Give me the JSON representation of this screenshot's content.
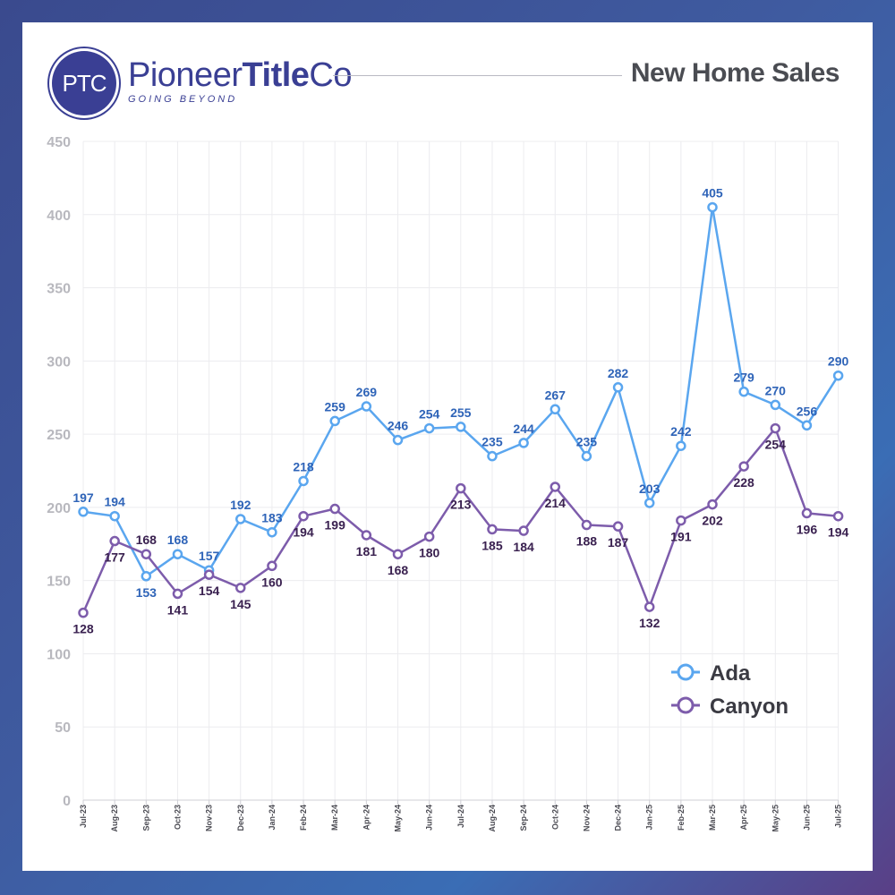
{
  "brand": {
    "badge": "PTC",
    "name_part1": "Pioneer",
    "name_part2": "Title",
    "name_part3": "Co",
    "tagline": "GOING BEYOND"
  },
  "colors": {
    "ada": "#5aa6ef",
    "canyon": "#7d5cab",
    "ada_label": "#2f64b8",
    "canyon_label": "#3a2150",
    "brand": "#3a3f94"
  },
  "chart_data": {
    "type": "line",
    "title": "New Home Sales",
    "xlabel": "",
    "ylabel": "",
    "ylim": [
      0,
      450
    ],
    "yticks": [
      0,
      50,
      100,
      150,
      200,
      250,
      300,
      350,
      400,
      450
    ],
    "grid": true,
    "legend_position": "bottom-right",
    "categories": [
      "Jul-23",
      "Aug-23",
      "Sep-23",
      "Oct-23",
      "Nov-23",
      "Dec-23",
      "Jan-24",
      "Feb-24",
      "Mar-24",
      "Apr-24",
      "May-24",
      "Jun-24",
      "Jul-24",
      "Aug-24",
      "Sep-24",
      "Oct-24",
      "Nov-24",
      "Dec-24",
      "Jan-25",
      "Feb-25",
      "Mar-25",
      "Apr-25",
      "May-25",
      "Jun-25",
      "Jul-25"
    ],
    "series": [
      {
        "name": "Ada",
        "color": "#5aa6ef",
        "values": [
          197,
          194,
          153,
          168,
          157,
          192,
          183,
          218,
          259,
          269,
          246,
          254,
          255,
          235,
          244,
          267,
          235,
          282,
          203,
          242,
          405,
          279,
          270,
          256,
          290
        ]
      },
      {
        "name": "Canyon",
        "color": "#7d5cab",
        "values": [
          128,
          177,
          168,
          141,
          154,
          145,
          160,
          194,
          199,
          181,
          168,
          180,
          213,
          185,
          184,
          214,
          188,
          187,
          132,
          191,
          202,
          228,
          254,
          196,
          194
        ]
      }
    ]
  }
}
